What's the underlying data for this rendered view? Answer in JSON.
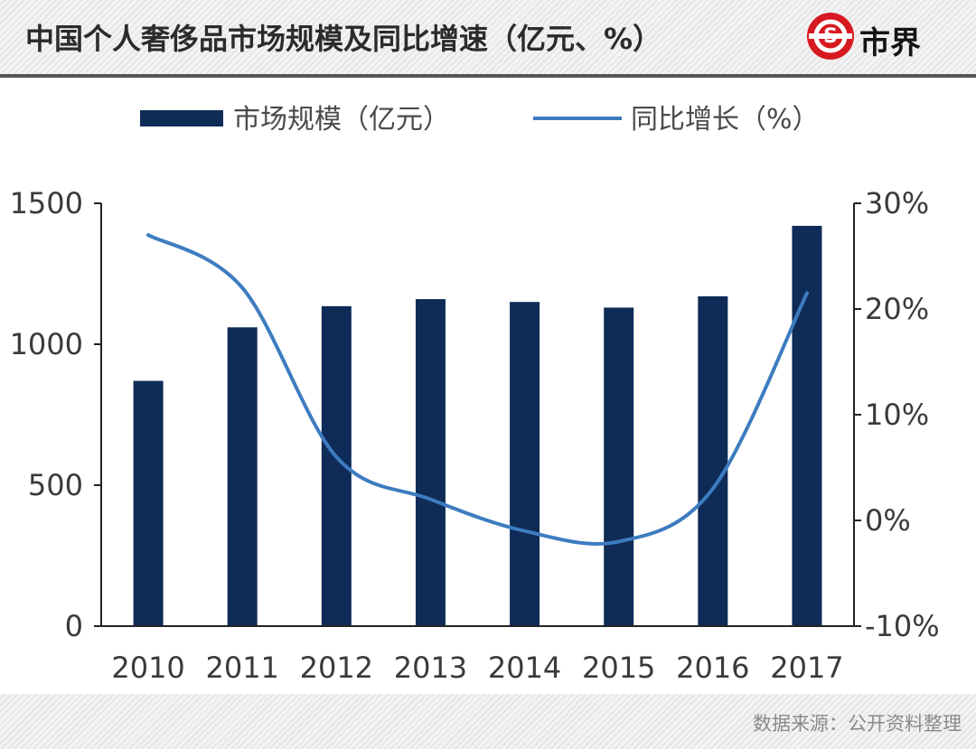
{
  "header": {
    "title": "中国个人奢侈品市场规模及同比增速（亿元、%）"
  },
  "brand": {
    "name": "市界",
    "logo_text": "S"
  },
  "footer": {
    "source": "数据来源：公开资料整理"
  },
  "colors": {
    "bar": "#0f2b57",
    "line": "#3d7cc0",
    "axis": "#222222"
  },
  "chart_data": {
    "type": "bar",
    "categories": [
      "2010",
      "2011",
      "2012",
      "2013",
      "2014",
      "2015",
      "2016",
      "2017"
    ],
    "series": [
      {
        "name": "市场规模（亿元）",
        "type": "bar",
        "axis": "left",
        "values": [
          870,
          1060,
          1135,
          1160,
          1150,
          1130,
          1170,
          1420
        ]
      },
      {
        "name": "同比增长（%）",
        "type": "line",
        "axis": "right",
        "values": [
          27,
          22,
          6,
          2,
          -1,
          -2,
          3,
          21.5
        ]
      }
    ],
    "y_left": {
      "min": 0,
      "max": 1500,
      "ticks": [
        "0",
        "500",
        "1000",
        "1500"
      ]
    },
    "y_right": {
      "min": -10,
      "max": 30,
      "ticks": [
        "-10%",
        "0%",
        "10%",
        "20%",
        "30%"
      ]
    },
    "legend_position": "top",
    "grid": false
  }
}
